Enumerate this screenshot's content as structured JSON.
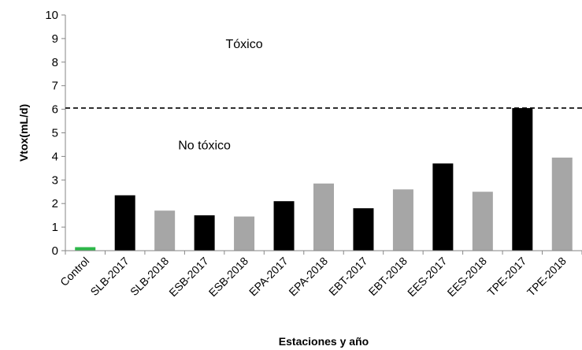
{
  "chart_data": {
    "type": "bar",
    "xlabel": "Estaciones y año",
    "ylabel": "Vtox(mL/d)",
    "ylim": [
      0,
      10
    ],
    "yticks": [
      0,
      1,
      2,
      3,
      4,
      5,
      6,
      7,
      8,
      9,
      10
    ],
    "grid": false,
    "categories": [
      "Control",
      "SLB-2017",
      "SLB-2018",
      "ESB-2017",
      "ESB-2018",
      "EPA-2017",
      "EPA-2018",
      "EBT-2017",
      "EBT-2018",
      "EES-2017",
      "EES-2018",
      "TPE-2017",
      "TPE-2018"
    ],
    "values": [
      0.15,
      2.35,
      1.7,
      1.5,
      1.45,
      2.1,
      2.85,
      1.8,
      2.6,
      3.7,
      2.5,
      6.05,
      3.95
    ],
    "bar_colors": [
      "#2db84a",
      "#000000",
      "#a6a6a6",
      "#000000",
      "#a6a6a6",
      "#000000",
      "#a6a6a6",
      "#000000",
      "#a6a6a6",
      "#000000",
      "#a6a6a6",
      "#000000",
      "#a6a6a6"
    ],
    "threshold": {
      "value": 6.05,
      "style": "dashed",
      "color": "#000000"
    },
    "annotations": [
      {
        "text": "Tóxico",
        "x": "ESB-2018",
        "y": 8.6
      },
      {
        "text": "No tóxico",
        "x": "ESB-2017",
        "y": 4.3
      }
    ]
  }
}
